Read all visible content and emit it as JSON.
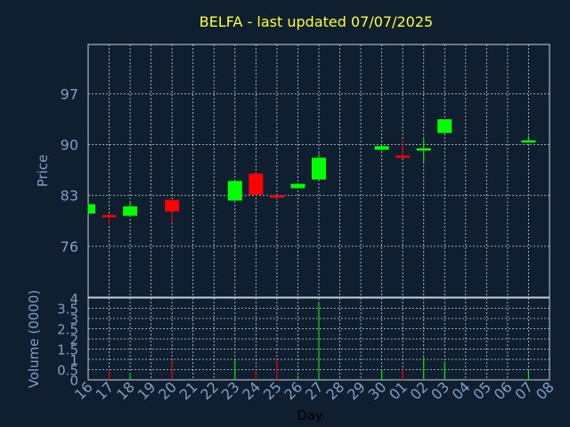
{
  "chart_data": {
    "type": "candlestick",
    "title": "BELFA - last updated 07/07/2025",
    "price_axis": {
      "label": "Price",
      "ticks": [
        76,
        83,
        90,
        97
      ],
      "ylim": [
        69.0,
        103.8
      ]
    },
    "volume_axis": {
      "label": "Volume (0000)",
      "ticks": [
        0,
        0.5,
        1,
        1.5,
        2,
        2.5,
        3,
        3.5,
        4
      ],
      "tick_labels": [
        "0",
        "0.5",
        "1",
        "1.5",
        "2",
        "2.5",
        "3",
        "3.5",
        "4"
      ],
      "ylim": [
        0,
        4
      ]
    },
    "x_axis": {
      "label": "Day",
      "ticks": [
        "16",
        "17",
        "18",
        "19",
        "20",
        "21",
        "22",
        "23",
        "24",
        "25",
        "26",
        "27",
        "28",
        "29",
        "30",
        "01",
        "02",
        "03",
        "04",
        "05",
        "06",
        "07",
        "08"
      ]
    },
    "up_color": "#00ff00",
    "down_color": "#ff0000",
    "candles": [
      {
        "day": "16",
        "open": 80.5,
        "high": 81.8,
        "low": 80.5,
        "close": 81.8,
        "volume": 0.0
      },
      {
        "day": "17",
        "open": 80.3,
        "high": 80.4,
        "low": 79.0,
        "close": 80.1,
        "volume": 0.5
      },
      {
        "day": "18",
        "open": 80.2,
        "high": 82.2,
        "low": 80.2,
        "close": 81.5,
        "volume": 0.3
      },
      {
        "day": "20",
        "open": 82.4,
        "high": 82.4,
        "low": 79.2,
        "close": 80.8,
        "volume": 1.0
      },
      {
        "day": "23",
        "open": 82.3,
        "high": 85.2,
        "low": 82.3,
        "close": 85.0,
        "volume": 1.0
      },
      {
        "day": "24",
        "open": 86.0,
        "high": 86.0,
        "low": 83.0,
        "close": 83.1,
        "volume": 0.5
      },
      {
        "day": "25",
        "open": 83.0,
        "high": 83.0,
        "low": 82.6,
        "close": 82.7,
        "volume": 1.0
      },
      {
        "day": "26",
        "open": 84.0,
        "high": 84.7,
        "low": 84.0,
        "close": 84.6,
        "volume": 0.2
      },
      {
        "day": "27",
        "open": 85.2,
        "high": 88.8,
        "low": 85.2,
        "close": 88.2,
        "volume": 3.8
      },
      {
        "day": "30",
        "open": 89.3,
        "high": 90.1,
        "low": 89.2,
        "close": 89.8,
        "volume": 0.5
      },
      {
        "day": "01",
        "open": 88.5,
        "high": 90.6,
        "low": 88.1,
        "close": 88.4,
        "volume": 0.6
      },
      {
        "day": "02",
        "open": 89.2,
        "high": 90.8,
        "low": 87.6,
        "close": 89.5,
        "volume": 1.1
      },
      {
        "day": "03",
        "open": 91.6,
        "high": 93.5,
        "low": 91.6,
        "close": 93.5,
        "volume": 0.9
      },
      {
        "day": "07",
        "open": 90.4,
        "high": 91.2,
        "low": 90.3,
        "close": 90.6,
        "volume": 0.5
      }
    ]
  }
}
